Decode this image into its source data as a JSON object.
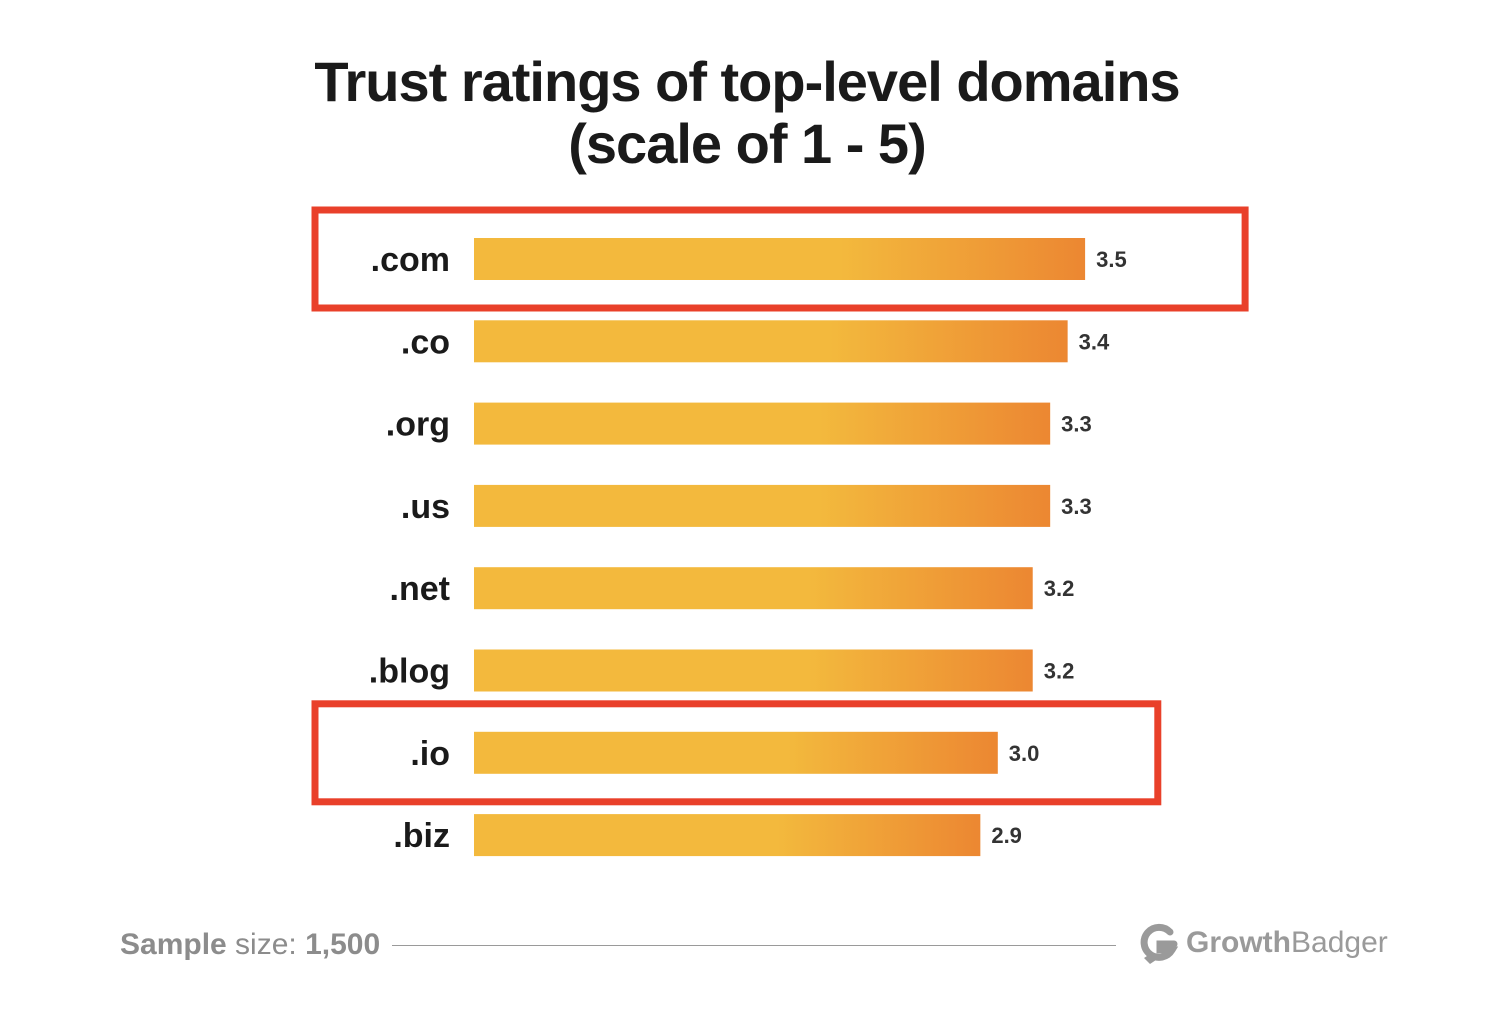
{
  "title_line1": "Trust ratings of top-level domains",
  "title_line2": "(scale of 1 - 5)",
  "chart_data": {
    "type": "bar",
    "orientation": "horizontal",
    "categories": [
      ".com",
      ".co",
      ".org",
      ".us",
      ".net",
      ".blog",
      ".io",
      ".biz"
    ],
    "values": [
      3.5,
      3.4,
      3.3,
      3.3,
      3.2,
      3.2,
      3.0,
      2.9
    ],
    "value_labels": [
      "3.5",
      "3.4",
      "3.3",
      "3.3",
      "3.2",
      "3.2",
      "3.0",
      "2.9"
    ],
    "highlighted": [
      ".com",
      ".io"
    ],
    "colors": {
      "bar_start": "#f3b93d",
      "bar_end": "#ec8732",
      "highlight_box": "#e9402a"
    }
  },
  "footer": {
    "sample_label_bold": "Sample",
    "sample_label_rest": " size: ",
    "sample_value": "1,500"
  },
  "brand": {
    "logo_icon": "growthbadger-g-icon",
    "name_part1": "Growth",
    "name_part2": "Badger"
  }
}
